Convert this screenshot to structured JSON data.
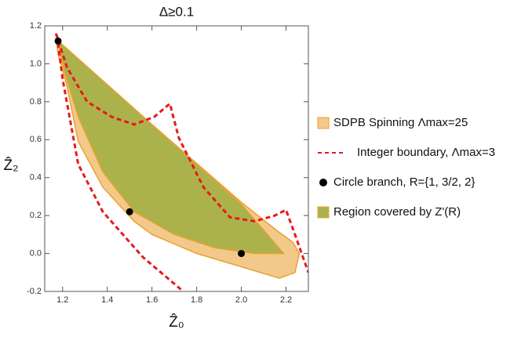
{
  "chart_data": {
    "type": "mixed",
    "title": "Δ≥0.1",
    "x_label": "Ẑ₀",
    "y_label": "Ẑ₂",
    "xlim": [
      1.12,
      2.3
    ],
    "ylim": [
      -0.2,
      1.2
    ],
    "xticks": [
      1.2,
      1.4,
      1.6,
      1.8,
      {
        "value": 2.0,
        "label": "2.0"
      },
      2.2
    ],
    "yticks": [
      -0.2,
      {
        "value": 0.0,
        "label": "0.0"
      },
      0.2,
      0.4,
      0.6,
      0.8,
      {
        "value": 1.0,
        "label": "1.0"
      },
      1.2
    ],
    "legend": "right",
    "series": [
      {
        "name": "SDPB Spinning Λmax=25",
        "type": "area",
        "color": "#f3c98b",
        "stroke": "#e9a132",
        "x": [
          1.17,
          1.2,
          1.6,
          2.0,
          2.16,
          2.23,
          2.26,
          2.24,
          2.17,
          2.0,
          1.8,
          1.6,
          1.52,
          1.38,
          1.27,
          1.22,
          1.18
        ],
        "values": [
          1.13,
          1.1,
          0.68,
          0.27,
          0.12,
          0.06,
          0.0,
          -0.1,
          -0.13,
          -0.07,
          0.0,
          0.1,
          0.17,
          0.35,
          0.59,
          0.88,
          1.05
        ]
      },
      {
        "name": "Integer boundary, Λmax=3",
        "type": "line",
        "color": "#e8191a",
        "dash": true,
        "x": [
          1.17,
          1.22,
          1.31,
          1.42,
          1.52,
          1.61,
          1.68,
          1.72,
          1.83,
          1.95,
          2.06,
          2.15,
          2.2,
          2.24,
          2.3
        ],
        "values": [
          1.16,
          0.98,
          0.8,
          0.72,
          0.68,
          0.72,
          0.79,
          0.61,
          0.35,
          0.19,
          0.17,
          0.2,
          0.23,
          0.1,
          -0.1
        ]
      },
      {
        "name": "Circle branch, R={1, 3/2, 2}",
        "type": "scatter",
        "color": "#000000",
        "x": [
          1.18,
          1.5,
          2.0
        ],
        "values": [
          1.12,
          0.22,
          0.0
        ]
      },
      {
        "name": "Region covered by Z'(R)",
        "type": "area",
        "color": "#abb24c",
        "stroke": "#e9a132",
        "x": [
          1.18,
          1.6,
          2.0,
          2.19,
          2.06,
          1.88,
          1.7,
          1.52,
          1.38,
          1.27,
          1.21
        ],
        "values": [
          1.12,
          0.68,
          0.26,
          0.0,
          0.0,
          0.03,
          0.1,
          0.22,
          0.43,
          0.72,
          0.95
        ]
      },
      {
        "type": "line",
        "color": "#e8191a",
        "dash": true,
        "x": [
          1.175,
          1.2,
          1.27,
          1.38,
          1.56,
          1.74
        ],
        "values": [
          1.15,
          0.92,
          0.47,
          0.22,
          -0.02,
          -0.2
        ]
      }
    ]
  }
}
